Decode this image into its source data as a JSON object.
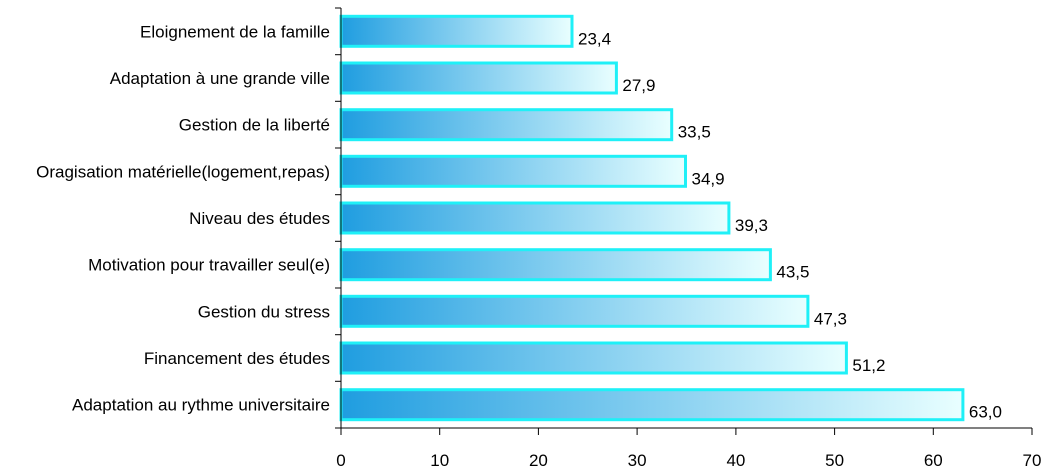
{
  "chart_data": {
    "type": "bar",
    "orientation": "horizontal",
    "categories": [
      "Eloignement de la famille",
      "Adaptation à une grande ville",
      "Gestion de la liberté",
      "Oragisation matérielle(logement,repas)",
      "Niveau des études",
      "Motivation pour travailler seul(e)",
      "Gestion du stress",
      "Financement des études",
      "Adaptation au rythme universitaire"
    ],
    "values": [
      23.4,
      27.9,
      33.5,
      34.9,
      39.3,
      43.5,
      47.3,
      51.2,
      63.0
    ],
    "value_labels": [
      "23,4",
      "27,9",
      "33,5",
      "34,9",
      "39,3",
      "43,5",
      "47,3",
      "51,2",
      "63,0"
    ],
    "xlim": [
      0,
      70
    ],
    "xticks": [
      "0",
      "10",
      "20",
      "30",
      "40",
      "50",
      "60",
      "70"
    ],
    "title": "",
    "xlabel": "",
    "ylabel": "",
    "grid": false,
    "legend": "none",
    "colors": {
      "bar_start": "#1f9de0",
      "bar_end": "#e9ffff",
      "bar_border": "#1ff0f7",
      "axis": "#000000",
      "text": "#000000"
    }
  }
}
